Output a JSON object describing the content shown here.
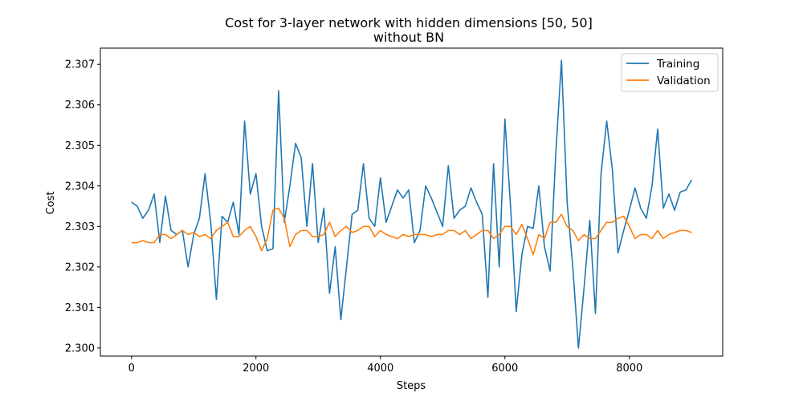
{
  "chart_data": {
    "type": "line",
    "title": "Cost for 3-layer network with hidden dimensions [50, 50]",
    "subtitle": "without BN",
    "xlabel": "Steps",
    "ylabel": "Cost",
    "xlim": [
      -500,
      9500
    ],
    "ylim": [
      2.2998,
      2.3074
    ],
    "x_ticks": [
      0,
      2000,
      4000,
      6000,
      8000
    ],
    "y_ticks": [
      2.3,
      2.301,
      2.302,
      2.303,
      2.304,
      2.305,
      2.306,
      2.307
    ],
    "y_tick_labels": [
      "2.300",
      "2.301",
      "2.302",
      "2.303",
      "2.304",
      "2.305",
      "2.306",
      "2.307"
    ],
    "grid": false,
    "legend_position": "top-right",
    "x": [
      0,
      91,
      182,
      273,
      364,
      455,
      545,
      636,
      727,
      818,
      909,
      1000,
      1091,
      1182,
      1273,
      1364,
      1455,
      1545,
      1636,
      1727,
      1818,
      1909,
      2000,
      2091,
      2182,
      2273,
      2364,
      2455,
      2545,
      2636,
      2727,
      2818,
      2909,
      3000,
      3091,
      3182,
      3273,
      3364,
      3455,
      3545,
      3636,
      3727,
      3818,
      3909,
      4000,
      4091,
      4182,
      4273,
      4364,
      4455,
      4545,
      4636,
      4727,
      4818,
      4909,
      5000,
      5091,
      5182,
      5273,
      5364,
      5455,
      5545,
      5636,
      5727,
      5818,
      5909,
      6000,
      6091,
      6182,
      6273,
      6364,
      6455,
      6545,
      6636,
      6727,
      6818,
      6909,
      7000,
      7091,
      7182,
      7273,
      7364,
      7455,
      7545,
      7636,
      7727,
      7818,
      7909,
      8000,
      8091,
      8182,
      8273,
      8364,
      8455,
      8545,
      8636,
      8727,
      8818,
      8909,
      9000
    ],
    "series": [
      {
        "name": "Training",
        "color": "#1f77b4",
        "values": [
          2.3036,
          2.3035,
          2.3032,
          2.3034,
          2.3038,
          2.3026,
          2.30375,
          2.3029,
          2.3028,
          2.3029,
          2.302,
          2.3028,
          2.3032,
          2.3043,
          2.3031,
          2.3012,
          2.30325,
          2.3031,
          2.3036,
          2.3028,
          2.3056,
          2.3038,
          2.3043,
          2.303,
          2.3024,
          2.30245,
          2.30635,
          2.3031,
          2.304,
          2.30505,
          2.3047,
          2.303,
          2.30455,
          2.3026,
          2.30345,
          2.30135,
          2.3025,
          2.3007,
          2.302,
          2.3033,
          2.3034,
          2.30455,
          2.3032,
          2.303,
          2.3042,
          2.3031,
          2.3035,
          2.3039,
          2.3037,
          2.3039,
          2.3026,
          2.3029,
          2.304,
          2.3037,
          2.30335,
          2.303,
          2.3045,
          2.3032,
          2.3034,
          2.3035,
          2.30395,
          2.3036,
          2.3033,
          2.30125,
          2.30455,
          2.302,
          2.30565,
          2.3035,
          2.3009,
          2.3023,
          2.303,
          2.30295,
          2.304,
          2.3025,
          2.3019,
          2.3048,
          2.3071,
          2.3036,
          2.302,
          2.3,
          2.3015,
          2.30315,
          2.30085,
          2.3043,
          2.3056,
          2.3044,
          2.30235,
          2.3029,
          2.3034,
          2.30395,
          2.30345,
          2.3032,
          2.304,
          2.3054,
          2.30345,
          2.3038,
          2.3034,
          2.30385,
          2.3039,
          2.30415
        ]
      },
      {
        "name": "Validation",
        "color": "#ff7f0e",
        "values": [
          2.3026,
          2.3026,
          2.30265,
          2.3026,
          2.3026,
          2.3028,
          2.3028,
          2.3027,
          2.3028,
          2.3029,
          2.3028,
          2.30285,
          2.30275,
          2.3028,
          2.3027,
          2.3029,
          2.303,
          2.3031,
          2.30275,
          2.30275,
          2.3029,
          2.303,
          2.30275,
          2.3024,
          2.3027,
          2.3034,
          2.30345,
          2.3032,
          2.3025,
          2.3028,
          2.3029,
          2.3029,
          2.30275,
          2.30275,
          2.3028,
          2.3031,
          2.30275,
          2.3029,
          2.303,
          2.30285,
          2.3029,
          2.303,
          2.303,
          2.30275,
          2.3029,
          2.3028,
          2.30275,
          2.3027,
          2.3028,
          2.30275,
          2.3028,
          2.3028,
          2.3028,
          2.30275,
          2.3028,
          2.3028,
          2.3029,
          2.3029,
          2.3028,
          2.3029,
          2.3027,
          2.3028,
          2.3029,
          2.3029,
          2.3027,
          2.3028,
          2.303,
          2.303,
          2.3028,
          2.30305,
          2.3027,
          2.3023,
          2.3028,
          2.3027,
          2.3031,
          2.3031,
          2.3033,
          2.303,
          2.3029,
          2.30265,
          2.3028,
          2.3027,
          2.3027,
          2.3029,
          2.3031,
          2.3031,
          2.3032,
          2.30325,
          2.303,
          2.3027,
          2.3028,
          2.3028,
          2.3027,
          2.3029,
          2.3027,
          2.3028,
          2.30285,
          2.3029,
          2.3029,
          2.30285
        ]
      }
    ]
  }
}
